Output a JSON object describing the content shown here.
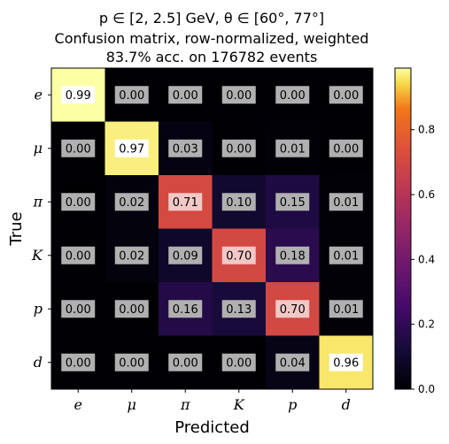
{
  "chart_data": {
    "type": "heatmap",
    "title_lines": [
      "p ∈ [2, 2.5] GeV, θ ∈ [60°, 77°]",
      "Confusion matrix, row-normalized, weighted",
      "83.7% acc. on 176782 events"
    ],
    "xlabel": "Predicted",
    "ylabel": "True",
    "x_categories": [
      "e",
      "μ",
      "π",
      "K",
      "p",
      "d"
    ],
    "y_categories": [
      "e",
      "μ",
      "π",
      "K",
      "p",
      "d"
    ],
    "values": [
      [
        0.99,
        0.0,
        0.0,
        0.0,
        0.0,
        0.0
      ],
      [
        0.0,
        0.97,
        0.03,
        0.0,
        0.01,
        0.0
      ],
      [
        0.0,
        0.02,
        0.71,
        0.1,
        0.15,
        0.01
      ],
      [
        0.0,
        0.02,
        0.09,
        0.7,
        0.18,
        0.01
      ],
      [
        0.0,
        0.0,
        0.16,
        0.13,
        0.7,
        0.01
      ],
      [
        0.0,
        0.0,
        0.0,
        0.0,
        0.04,
        0.96
      ]
    ],
    "value_labels": [
      [
        "0.99",
        "0.00",
        "0.00",
        "0.00",
        "0.00",
        "0.00"
      ],
      [
        "0.00",
        "0.97",
        "0.03",
        "0.00",
        "0.01",
        "0.00"
      ],
      [
        "0.00",
        "0.02",
        "0.71",
        "0.10",
        "0.15",
        "0.01"
      ],
      [
        "0.00",
        "0.02",
        "0.09",
        "0.70",
        "0.18",
        "0.01"
      ],
      [
        "0.00",
        "0.00",
        "0.16",
        "0.13",
        "0.70",
        "0.01"
      ],
      [
        "0.00",
        "0.00",
        "0.00",
        "0.00",
        "0.04",
        "0.96"
      ]
    ],
    "colormap": "inferno",
    "colorbar": {
      "range": [
        0.0,
        0.99
      ],
      "ticks": [
        0.0,
        0.2,
        0.4,
        0.6,
        0.8
      ],
      "tick_labels": [
        "0.0",
        "0.2",
        "0.4",
        "0.6",
        "0.8"
      ]
    },
    "label_box_colors": {
      "dark_cell": "#b0b0b0",
      "bright_cell": "#ffffff"
    }
  }
}
